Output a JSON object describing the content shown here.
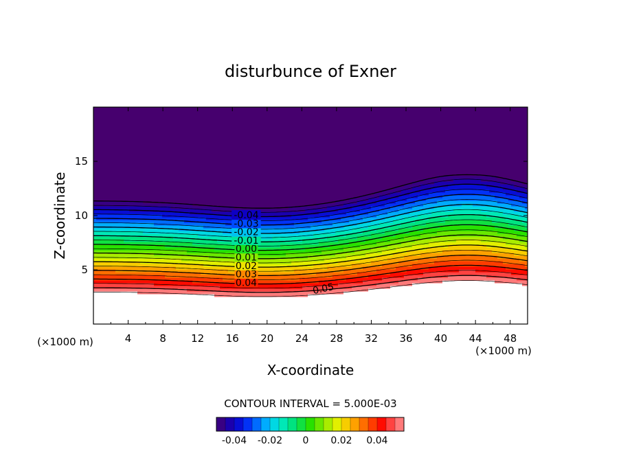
{
  "chart_data": {
    "type": "contour",
    "title": "disturbunce of Exner",
    "xlabel": "X-coordinate",
    "ylabel": "Z-coordinate",
    "x_unit_left": "(×1000 m)",
    "x_unit_right": "(×1000 m)",
    "xlim": [
      0,
      50
    ],
    "ylim": [
      0,
      20
    ],
    "xticks": [
      4,
      8,
      12,
      16,
      20,
      24,
      28,
      32,
      36,
      40,
      44,
      48
    ],
    "yticks": [
      5,
      10,
      15
    ],
    "contour_interval_label": "CONTOUR INTERVAL = 5.000E-03",
    "contour_interval": 0.005,
    "contour_labels": [
      {
        "text": "0.05",
        "value": 0.05
      },
      {
        "text": "0.04",
        "value": 0.04
      },
      {
        "text": "0.03",
        "value": 0.03
      },
      {
        "text": "0.02",
        "value": 0.02
      },
      {
        "text": "0.01",
        "value": 0.01
      },
      {
        "text": "0.00",
        "value": 0.0
      },
      {
        "text": "-0.01",
        "value": -0.01
      },
      {
        "text": "-0.02",
        "value": -0.02
      },
      {
        "text": "-0.03",
        "value": -0.03
      },
      {
        "text": "-0.04",
        "value": -0.04
      }
    ],
    "colorbar": {
      "min": -0.05,
      "max": 0.055,
      "ticks": [
        {
          "label": "-0.04",
          "value": -0.04
        },
        {
          "label": "-0.02",
          "value": -0.02
        },
        {
          "label": "0",
          "value": 0
        },
        {
          "label": "0.02",
          "value": 0.02
        },
        {
          "label": "0.04",
          "value": 0.04
        }
      ]
    },
    "above_range_color": "#ffffff"
  }
}
